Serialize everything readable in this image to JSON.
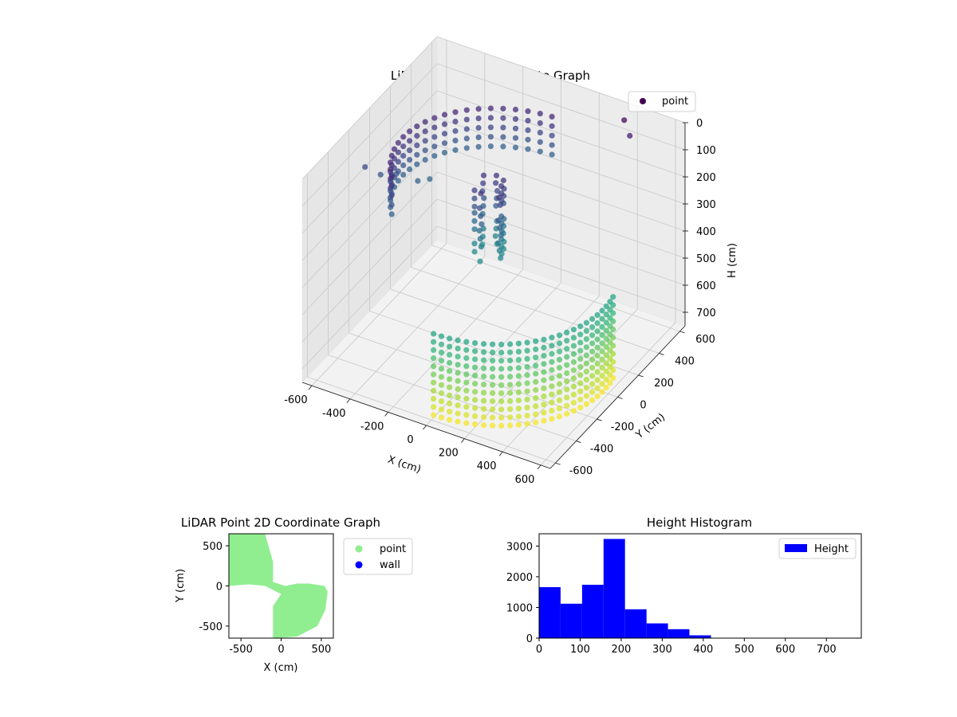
{
  "figure": {
    "background": "#ffffff"
  },
  "chart_data": [
    {
      "type": "scatter",
      "projection": "3d",
      "title": "LiDAR Point 3D Coordinate Graph",
      "xlabel": "X (cm)",
      "ylabel": "Y (cm)",
      "zlabel": "H (cm)",
      "xlim": [
        -650,
        650
      ],
      "ylim": [
        -650,
        650
      ],
      "zlim": [
        0,
        750
      ],
      "z_inverted": true,
      "xticks": [
        -600,
        -400,
        -200,
        0,
        200,
        400,
        600
      ],
      "yticks": [
        -600,
        -400,
        -200,
        0,
        200,
        400,
        600
      ],
      "zticks": [
        0,
        100,
        200,
        300,
        400,
        500,
        600,
        700
      ],
      "grid": true,
      "colormap": "viridis",
      "legend": {
        "placement": "upper-right",
        "entries": [
          {
            "label": "point",
            "color": "#440154"
          }
        ]
      },
      "series": [
        {
          "name": "point",
          "description_of_shape": "two curved walls of points (upper arc around the far side, lower arc on the near side) plus a central cluster",
          "sample_points": [
            {
              "x": -500,
              "y": 400,
              "h": 150
            },
            {
              "x": -400,
              "y": 450,
              "h": 150
            },
            {
              "x": -300,
              "y": 500,
              "h": 150
            },
            {
              "x": -200,
              "y": 520,
              "h": 150
            },
            {
              "x": -100,
              "y": 550,
              "h": 150
            },
            {
              "x": 0,
              "y": 560,
              "h": 150
            },
            {
              "x": 100,
              "y": 560,
              "h": 150
            },
            {
              "x": 200,
              "y": 540,
              "h": 150
            },
            {
              "x": 300,
              "y": 520,
              "h": 150
            },
            {
              "x": 400,
              "y": 500,
              "h": 150
            },
            {
              "x": -100,
              "y": 50,
              "h": 250
            },
            {
              "x": 0,
              "y": 0,
              "h": 300
            },
            {
              "x": 100,
              "y": -50,
              "h": 250
            },
            {
              "x": 0,
              "y": -550,
              "h": 600
            },
            {
              "x": 150,
              "y": -550,
              "h": 600
            },
            {
              "x": 300,
              "y": -500,
              "h": 600
            },
            {
              "x": 450,
              "y": -400,
              "h": 600
            },
            {
              "x": 550,
              "y": -250,
              "h": 600
            },
            {
              "x": 600,
              "y": -100,
              "h": 600
            },
            {
              "x": 600,
              "y": 0,
              "h": 600
            }
          ]
        }
      ]
    },
    {
      "type": "scatter",
      "title": "LiDAR Point 2D Coordinate Graph",
      "xlabel": "X (cm)",
      "ylabel": "Y (cm)",
      "xlim": [
        -650,
        650
      ],
      "ylim": [
        -650,
        650
      ],
      "xticks": [
        -500,
        0,
        500
      ],
      "yticks": [
        -500,
        0,
        500
      ],
      "legend": {
        "placement": "outside-upper-right",
        "entries": [
          {
            "label": "point",
            "color": "#90ee90"
          },
          {
            "label": "wall",
            "color": "#0000ff"
          }
        ]
      },
      "series": [
        {
          "name": "point",
          "color": "#90ee90",
          "region_polygon": [
            [
              -650,
              650
            ],
            [
              -200,
              650
            ],
            [
              -100,
              300
            ],
            [
              -100,
              50
            ],
            [
              50,
              0
            ],
            [
              200,
              30
            ],
            [
              350,
              30
            ],
            [
              540,
              0
            ],
            [
              580,
              -70
            ],
            [
              550,
              -300
            ],
            [
              450,
              -500
            ],
            [
              200,
              -630
            ],
            [
              -100,
              -650
            ],
            [
              -100,
              -250
            ],
            [
              0,
              -100
            ],
            [
              -200,
              0
            ],
            [
              -400,
              20
            ],
            [
              -650,
              0
            ]
          ]
        },
        {
          "name": "wall",
          "color": "#0000ff",
          "points": []
        }
      ]
    },
    {
      "type": "histogram",
      "title": "Height Histogram",
      "xlabel": "",
      "ylabel": "",
      "xlim": [
        0,
        785
      ],
      "ylim": [
        0,
        3400
      ],
      "xticks": [
        0,
        100,
        200,
        300,
        400,
        500,
        600,
        700
      ],
      "yticks": [
        0,
        1000,
        2000,
        3000
      ],
      "legend": {
        "placement": "upper-right",
        "entries": [
          {
            "label": "Height",
            "color": "#0000ff"
          }
        ]
      },
      "series": [
        {
          "name": "Height",
          "color": "#0000ff",
          "bins": [
            0,
            52.3,
            104.7,
            157,
            209.3,
            261.7,
            314,
            366.3,
            418.7,
            471,
            523.3,
            575.7,
            628,
            680.3,
            732.7,
            785
          ],
          "counts": [
            1660,
            1120,
            1740,
            3230,
            940,
            480,
            290,
            90,
            0,
            0,
            0,
            0,
            0,
            0,
            0
          ]
        }
      ]
    }
  ]
}
